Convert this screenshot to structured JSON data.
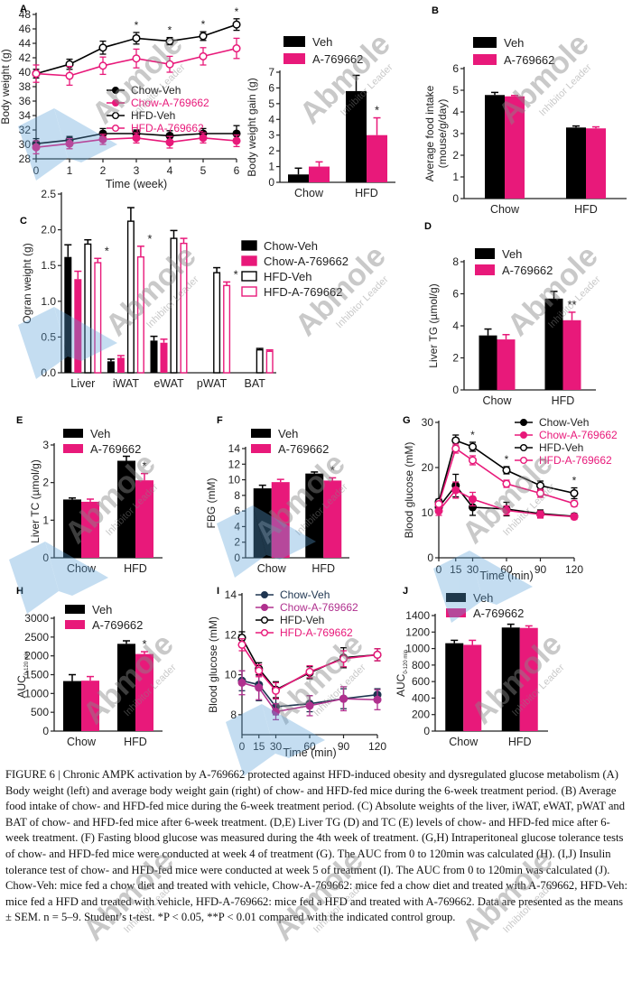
{
  "colors": {
    "veh": "#000000",
    "drug": "#e8197a",
    "axis": "#222222",
    "watermark_text": "#888888",
    "watermark_shape": "#5aa0d8"
  },
  "watermark": {
    "brand": "Abmole",
    "tagline": "Inhibitor Leader"
  },
  "chart_data": [
    {
      "id": "A-left",
      "panel_label": "A",
      "type": "line",
      "title": "",
      "xlabel": "Time (week)",
      "ylabel": "Body weight (g)",
      "x": [
        0,
        1,
        2,
        3,
        4,
        5,
        6
      ],
      "xticks": [
        "0",
        "1",
        "2",
        "3",
        "4",
        "5",
        "6"
      ],
      "ylim": [
        28,
        48
      ],
      "yticks": [
        "28",
        "30",
        "32",
        "34",
        "36",
        "38",
        "40",
        "42",
        "44",
        "46",
        "48"
      ],
      "legend_position": "center-right",
      "series": [
        {
          "name": "Chow-Veh",
          "style": "filled-black",
          "values": [
            30.1,
            30.6,
            31.5,
            31.5,
            31.2,
            31.5,
            31.5
          ],
          "errors": [
            0.7,
            0.5,
            0.7,
            0.5,
            0.7,
            0.7,
            1.1
          ]
        },
        {
          "name": "Chow-A-769662",
          "style": "filled-pink",
          "values": [
            29.6,
            30.1,
            30.7,
            30.9,
            30.3,
            30.9,
            30.5
          ],
          "errors": [
            0.9,
            0.7,
            0.7,
            0.7,
            0.8,
            0.7,
            0.8
          ]
        },
        {
          "name": "HFD-Veh",
          "style": "open-black",
          "values": [
            39.8,
            41.1,
            43.4,
            44.7,
            44.3,
            45.0,
            46.6
          ],
          "errors": [
            0.6,
            0.7,
            0.9,
            0.8,
            0.5,
            0.6,
            0.8
          ]
        },
        {
          "name": "HFD-A-769662",
          "style": "open-pink",
          "values": [
            39.8,
            39.5,
            40.9,
            41.9,
            41.1,
            42.2,
            43.3
          ],
          "errors": [
            1.2,
            1.3,
            1.2,
            1.3,
            1.1,
            1.2,
            1.4
          ]
        }
      ],
      "annotations": [
        {
          "x": 3,
          "text": "*"
        },
        {
          "x": 4,
          "text": "*"
        },
        {
          "x": 5,
          "text": "*"
        },
        {
          "x": 6,
          "text": "*"
        }
      ]
    },
    {
      "id": "A-right",
      "panel_label": "",
      "type": "bar",
      "xlabel": "",
      "ylabel": "Body weight gain (g)",
      "categories": [
        "Chow",
        "HFD"
      ],
      "ylim": [
        0,
        7
      ],
      "yticks": [
        "0",
        "1",
        "2",
        "3",
        "4",
        "5",
        "6",
        "7"
      ],
      "legend_position": "top-left",
      "series": [
        {
          "name": "Veh",
          "values": [
            0.5,
            5.8
          ],
          "errors": [
            0.4,
            1.0
          ]
        },
        {
          "name": "A-769662",
          "values": [
            1.0,
            3.0
          ],
          "errors": [
            0.3,
            1.1
          ]
        }
      ],
      "annotations": [
        {
          "category": "HFD",
          "series": "A-769662",
          "text": "*"
        }
      ]
    },
    {
      "id": "B",
      "panel_label": "B",
      "type": "bar",
      "xlabel": "",
      "ylabel": "Average food intake (mouse/g/day)",
      "ylabel_lines": [
        "Average food intake",
        "(mouse/g/day)"
      ],
      "categories": [
        "Chow",
        "HFD"
      ],
      "ylim": [
        0,
        6
      ],
      "yticks": [
        "0",
        "1",
        "2",
        "3",
        "4",
        "5",
        "6"
      ],
      "legend_position": "top-left",
      "series": [
        {
          "name": "Veh",
          "values": [
            4.78,
            3.28
          ],
          "errors": [
            0.12,
            0.07
          ]
        },
        {
          "name": "A-769662",
          "values": [
            4.72,
            3.24
          ],
          "errors": [
            0.04,
            0.07
          ]
        }
      ],
      "annotations": []
    },
    {
      "id": "C",
      "panel_label": "C",
      "type": "bar",
      "xlabel": "",
      "ylabel": "Ogran weight (g)",
      "categories": [
        "Liver",
        "iWAT",
        "eWAT",
        "pWAT",
        "BAT"
      ],
      "ylim": [
        0,
        2.5
      ],
      "yticks": [
        "0.0",
        "0.5",
        "1.0",
        "1.5",
        "2.0",
        "2.5"
      ],
      "legend_position": "top-right",
      "series": [
        {
          "name": "Chow-Veh",
          "style": "filled-black",
          "values": [
            1.62,
            0.16,
            0.45,
            null,
            null
          ],
          "errors": [
            0.17,
            0.03,
            0.06,
            null,
            null
          ]
        },
        {
          "name": "Chow-A-769662",
          "style": "filled-pink",
          "values": [
            1.31,
            0.21,
            0.42,
            null,
            null
          ],
          "errors": [
            0.11,
            0.03,
            0.05,
            null,
            null
          ]
        },
        {
          "name": "HFD-Veh",
          "style": "open-black",
          "values": [
            1.8,
            2.12,
            1.88,
            1.4,
            0.32
          ],
          "errors": [
            0.06,
            0.19,
            0.11,
            0.07,
            0.02
          ]
        },
        {
          "name": "HFD-A-769662",
          "style": "open-pink",
          "values": [
            1.54,
            1.62,
            1.81,
            1.22,
            0.3
          ],
          "errors": [
            0.06,
            0.15,
            0.07,
            0.05,
            0.02
          ]
        }
      ],
      "annotations": [
        {
          "category": "Liver",
          "series": "HFD-A-769662",
          "text": "*"
        },
        {
          "category": "iWAT",
          "series": "HFD-A-769662",
          "text": "*"
        },
        {
          "category": "pWAT",
          "series": "HFD-A-769662",
          "text": "*"
        }
      ]
    },
    {
      "id": "D",
      "panel_label": "D",
      "type": "bar",
      "xlabel": "",
      "ylabel": "Liver TG (µmol/g)",
      "categories": [
        "Chow",
        "HFD"
      ],
      "ylim": [
        0,
        8
      ],
      "yticks": [
        "0",
        "2",
        "4",
        "6",
        "8"
      ],
      "legend_position": "top-left",
      "series": [
        {
          "name": "Veh",
          "values": [
            3.4,
            5.7
          ],
          "errors": [
            0.4,
            0.45
          ]
        },
        {
          "name": "A-769662",
          "values": [
            3.15,
            4.35
          ],
          "errors": [
            0.3,
            0.5
          ]
        }
      ],
      "annotations": [
        {
          "category": "HFD",
          "series": "A-769662",
          "text": "**"
        }
      ]
    },
    {
      "id": "E",
      "panel_label": "E",
      "type": "bar",
      "xlabel": "",
      "ylabel": "Liver TC (µmol/g)",
      "categories": [
        "Chow",
        "HFD"
      ],
      "ylim": [
        0,
        3
      ],
      "yticks": [
        "0",
        "1",
        "2",
        "3"
      ],
      "legend_position": "top-left",
      "series": [
        {
          "name": "Veh",
          "values": [
            1.55,
            2.58
          ],
          "errors": [
            0.04,
            0.12
          ]
        },
        {
          "name": "A-769662",
          "values": [
            1.49,
            2.06
          ],
          "errors": [
            0.07,
            0.18
          ]
        }
      ],
      "annotations": [
        {
          "category": "HFD",
          "series": "A-769662",
          "text": "*"
        }
      ]
    },
    {
      "id": "F",
      "panel_label": "F",
      "type": "bar",
      "xlabel": "",
      "ylabel": "FBG (mM)",
      "categories": [
        "Chow",
        "HFD"
      ],
      "ylim": [
        0,
        14
      ],
      "yticks": [
        "0",
        "2",
        "4",
        "6",
        "8",
        "10",
        "12",
        "14"
      ],
      "legend_position": "top-left",
      "series": [
        {
          "name": "Veh",
          "values": [
            8.9,
            10.8
          ],
          "errors": [
            0.4,
            0.2
          ]
        },
        {
          "name": "A-769662",
          "values": [
            9.7,
            9.9
          ],
          "errors": [
            0.35,
            0.35
          ]
        }
      ],
      "annotations": [
        {
          "category": "HFD",
          "series": "A-769662",
          "text": "*"
        }
      ]
    },
    {
      "id": "G",
      "panel_label": "G",
      "type": "line",
      "xlabel": "Time (min)",
      "ylabel": "Blood glucose (mM)",
      "x": [
        0,
        15,
        30,
        60,
        90,
        120
      ],
      "xticks": [
        "0",
        "15",
        "30",
        "60",
        "90",
        "120"
      ],
      "ylim": [
        0,
        30
      ],
      "yticks": [
        "0",
        "10",
        "20",
        "30"
      ],
      "legend_position": "top-right",
      "series": [
        {
          "name": "Chow-Veh",
          "style": "filled-black",
          "values": [
            11.2,
            16.0,
            11.2,
            10.8,
            9.8,
            9.2
          ],
          "errors": [
            1.0,
            2.5,
            1.8,
            1.5,
            0.8,
            0.6
          ]
        },
        {
          "name": "Chow-A-769662",
          "style": "filled-pink",
          "values": [
            10.4,
            15.0,
            13.0,
            10.5,
            9.6,
            9.1
          ],
          "errors": [
            1.0,
            1.8,
            1.5,
            1.0,
            0.8,
            0.6
          ]
        },
        {
          "name": "HFD-Veh",
          "style": "open-black",
          "values": [
            12.4,
            26.0,
            24.6,
            19.4,
            16.0,
            14.3
          ],
          "errors": [
            0.6,
            1.2,
            1.0,
            0.8,
            1.0,
            1.2
          ]
        },
        {
          "name": "HFD-A-769662",
          "style": "open-pink",
          "values": [
            11.9,
            24.2,
            21.6,
            16.4,
            14.3,
            12.0
          ],
          "errors": [
            0.6,
            1.0,
            1.0,
            0.8,
            0.9,
            0.6
          ]
        }
      ],
      "annotations": [
        {
          "x": 30,
          "text": "*"
        },
        {
          "x": 60,
          "text": "*"
        },
        {
          "x": 120,
          "text": "*"
        }
      ]
    },
    {
      "id": "H",
      "panel_label": "H",
      "type": "bar",
      "xlabel": "",
      "ylabel": "AUC",
      "ylabel_subscript": "0-120 min",
      "categories": [
        "Chow",
        "HFD"
      ],
      "ylim": [
        0,
        3000
      ],
      "yticks": [
        "0",
        "500",
        "1000",
        "1500",
        "2000",
        "2500",
        "3000"
      ],
      "legend_position": "top-left",
      "series": [
        {
          "name": "Veh",
          "values": [
            1330,
            2320
          ],
          "errors": [
            170,
            80
          ]
        },
        {
          "name": "A-769662",
          "values": [
            1340,
            2050
          ],
          "errors": [
            110,
            60
          ]
        }
      ],
      "annotations": [
        {
          "category": "HFD",
          "series": "A-769662",
          "text": "*"
        }
      ]
    },
    {
      "id": "I",
      "panel_label": "I",
      "type": "line",
      "xlabel": "Time (min)",
      "ylabel": "Blood glucose (mM)",
      "x": [
        0,
        15,
        30,
        60,
        90,
        120
      ],
      "xticks": [
        "0",
        "15",
        "30",
        "60",
        "90",
        "120"
      ],
      "ylim": [
        7,
        14
      ],
      "yticks": [
        "8",
        "10",
        "12",
        "14"
      ],
      "legend_position": "top-left",
      "series": [
        {
          "name": "Chow-Veh",
          "style": "filled-navy",
          "values": [
            9.7,
            9.5,
            8.4,
            8.55,
            8.8,
            9.0
          ],
          "errors": [
            0.5,
            0.8,
            0.4,
            0.4,
            0.5,
            0.3
          ]
        },
        {
          "name": "Chow-A-769662",
          "style": "filled-purple",
          "values": [
            9.6,
            9.35,
            8.15,
            8.45,
            8.8,
            8.75
          ],
          "errors": [
            0.6,
            0.6,
            0.4,
            0.5,
            0.6,
            0.5
          ]
        },
        {
          "name": "HFD-Veh",
          "style": "open-black",
          "values": [
            11.85,
            10.3,
            9.25,
            10.1,
            10.85,
            11.0
          ],
          "errors": [
            0.3,
            0.3,
            0.4,
            0.3,
            0.5,
            0.3
          ]
        },
        {
          "name": "HFD-A-769662",
          "style": "open-pink",
          "values": [
            11.5,
            10.2,
            9.2,
            10.15,
            10.8,
            11.0
          ],
          "errors": [
            0.3,
            0.3,
            0.4,
            0.3,
            0.4,
            0.3
          ]
        }
      ],
      "annotations": []
    },
    {
      "id": "J",
      "panel_label": "J",
      "type": "bar",
      "xlabel": "",
      "ylabel": "AUC",
      "ylabel_subscript": "0-120 min",
      "categories": [
        "Chow",
        "HFD"
      ],
      "ylim": [
        0,
        1400
      ],
      "yticks": [
        "0",
        "200",
        "400",
        "600",
        "800",
        "1000",
        "1200",
        "1400"
      ],
      "legend_position": "top-left",
      "series": [
        {
          "name": "Veh",
          "values": [
            1065,
            1255
          ],
          "errors": [
            35,
            40
          ]
        },
        {
          "name": "A-769662",
          "values": [
            1045,
            1250
          ],
          "errors": [
            55,
            25
          ]
        }
      ],
      "annotations": []
    }
  ],
  "caption": {
    "lead": "FIGURE 6 | ",
    "text": "Chronic AMPK activation by A-769662 protected against HFD-induced obesity and dysregulated glucose metabolism (A) Body weight (left) and average body weight gain (right) of chow- and HFD-fed mice during the 6-week treatment period. (B) Average food intake of chow- and HFD-fed mice during the 6-week treatment period. (C) Absolute weights of the liver, iWAT, eWAT, pWAT and BAT of chow- and HFD-fed mice after 6-week treatment. (D,E) Liver TG (D) and TC (E) levels of chow- and HFD-fed mice after 6-week treatment. (F) Fasting blood glucose was measured during the 4th week of treatment. (G,H) Intraperitoneal glucose tolerance tests of chow- and HFD-fed mice were conducted at week 4 of treatment (G). The AUC from 0 to 120min was calculated (H). (I,J) Insulin tolerance test of chow- and HFD-fed mice were conducted at week 5 of treatment (I). The AUC from 0 to 120min was calculated (J). Chow-Veh: mice fed a chow diet and treated with vehicle, Chow-A-769662: mice fed a chow diet and treated with A-769662, HFD-Veh: mice fed a HFD and treated with vehicle, HFD-A-769662: mice fed a HFD and treated with A-769662. Data are presented as the means ± SEM. n = 5–9. Student’s t-test. *P < 0.05, **P < 0.01 compared with the indicated control group."
  }
}
